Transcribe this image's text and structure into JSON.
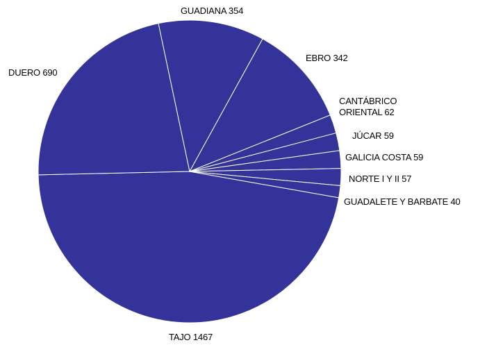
{
  "chart_data": {
    "type": "pie",
    "categories": [
      "TAJO",
      "DUERO",
      "GUADIANA",
      "EBRO",
      "CANTÁBRICO ORIENTAL",
      "JÚCAR",
      "GALICIA COSTA",
      "NORTE I Y II",
      "GUADALETE Y BARBATE"
    ],
    "values": [
      1467,
      690,
      354,
      342,
      62,
      59,
      59,
      57,
      40
    ],
    "color": "#333399"
  }
}
